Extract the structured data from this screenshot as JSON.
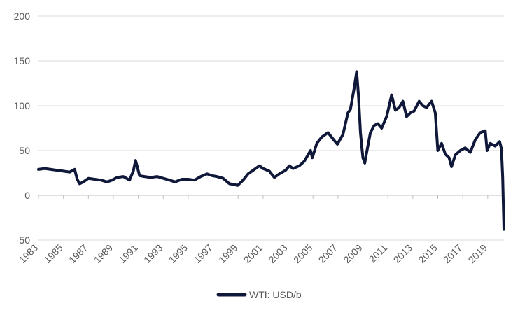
{
  "chart_data": {
    "type": "line",
    "title": "",
    "xlabel": "",
    "ylabel": "",
    "xlim": [
      1983,
      2020.3
    ],
    "ylim": [
      -50,
      200
    ],
    "yticks": [
      -50,
      0,
      50,
      100,
      150,
      200
    ],
    "xticks": [
      "1983",
      "1985",
      "1987",
      "1989",
      "1991",
      "1993",
      "1995",
      "1997",
      "1999",
      "2001",
      "2003",
      "2005",
      "2007",
      "2009",
      "2011",
      "2013",
      "2015",
      "2017",
      "2019"
    ],
    "grid": "horizontal",
    "legend_position": "bottom-center",
    "colors": {
      "line": "#10183a",
      "grid": "#d9d9d9",
      "axis": "#bfbfbf",
      "text": "#595959"
    },
    "series": [
      {
        "name": "WTI: USD/b",
        "x": [
          1983.0,
          1983.5,
          1984.0,
          1984.5,
          1985.0,
          1985.5,
          1985.9,
          1986.1,
          1986.3,
          1986.6,
          1987.0,
          1987.5,
          1988.0,
          1988.5,
          1988.9,
          1989.3,
          1989.8,
          1990.3,
          1990.6,
          1990.78,
          1990.9,
          1991.1,
          1991.5,
          1992.0,
          1992.5,
          1993.0,
          1993.5,
          1993.95,
          1994.5,
          1995.0,
          1995.5,
          1996.0,
          1996.5,
          1996.9,
          1997.3,
          1997.8,
          1998.3,
          1998.7,
          1998.95,
          1999.4,
          1999.8,
          2000.2,
          2000.7,
          2001.0,
          2001.5,
          2001.9,
          2002.3,
          2002.8,
          2003.1,
          2003.4,
          2003.9,
          2004.3,
          2004.8,
          2004.95,
          2005.3,
          2005.7,
          2006.2,
          2006.6,
          2006.95,
          2007.4,
          2007.8,
          2008.0,
          2008.3,
          2008.5,
          2008.65,
          2008.8,
          2008.9,
          2009.0,
          2009.15,
          2009.3,
          2009.6,
          2009.9,
          2010.2,
          2010.5,
          2010.9,
          2011.1,
          2011.3,
          2011.6,
          2011.9,
          2012.2,
          2012.5,
          2012.8,
          2013.1,
          2013.5,
          2013.8,
          2014.1,
          2014.5,
          2014.8,
          2015.0,
          2015.3,
          2015.6,
          2015.9,
          2016.1,
          2016.4,
          2016.8,
          2017.2,
          2017.6,
          2018.0,
          2018.4,
          2018.8,
          2018.95,
          2019.2,
          2019.6,
          2019.95,
          2020.1,
          2020.2,
          2020.25,
          2020.3
        ],
        "values": [
          29,
          30,
          29,
          28,
          27,
          26,
          29,
          18,
          13,
          15,
          19,
          18,
          17,
          15,
          17,
          20,
          21,
          17,
          27,
          39,
          33,
          22,
          21,
          20,
          21,
          19,
          17,
          15,
          18,
          18,
          17,
          21,
          24,
          22,
          21,
          19,
          13,
          12,
          11,
          17,
          24,
          28,
          33,
          30,
          27,
          20,
          24,
          28,
          33,
          30,
          33,
          38,
          50,
          42,
          58,
          65,
          70,
          63,
          57,
          68,
          92,
          96,
          120,
          138,
          110,
          70,
          55,
          42,
          36,
          48,
          70,
          78,
          80,
          75,
          88,
          100,
          112,
          95,
          98,
          105,
          88,
          92,
          94,
          105,
          100,
          98,
          105,
          92,
          50,
          58,
          46,
          42,
          32,
          45,
          50,
          53,
          48,
          62,
          70,
          72,
          50,
          58,
          55,
          60,
          52,
          20,
          -10,
          -38
        ]
      }
    ]
  }
}
